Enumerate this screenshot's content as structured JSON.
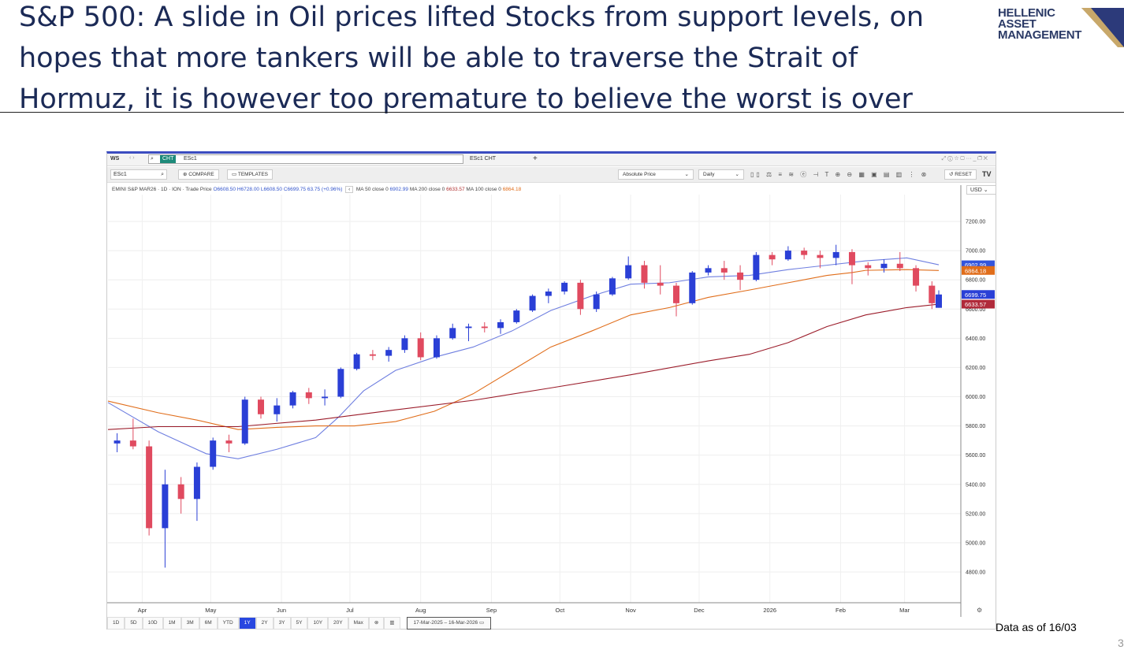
{
  "slide": {
    "title": "S&P 500: A slide in Oil prices lifted Stocks from support levels, on hopes that more tankers will be able to traverse the Strait of Hormuz, it is however too premature to believe the worst is over",
    "logo_text": "HELLENIC ASSET MANAGEMENT",
    "note": "Data as of 16/03",
    "page": "3"
  },
  "window": {
    "workspace": "WS",
    "cht_badge": "CHT",
    "search_value": "ESc1",
    "tab": "ESc1 CHT",
    "add_tab": "+",
    "ric": "ESc1",
    "compare": "COMPARE",
    "templates": "TEMPLATES",
    "price_mode": "Absolute Price",
    "interval": "Daily",
    "reset": "RESET",
    "currency": "USD",
    "accent": "#3b4cc0"
  },
  "legend": {
    "instrument": "EMINI S&P MAR26 · 1D · ION · Trade Price",
    "o": "O6608.50",
    "h": "H6728.00",
    "l": "L6608.50",
    "c": "C6699.75",
    "chg": "63.75 (+0.96%)",
    "ma50": "MA 50 close 0",
    "ma50_v": "6902.99",
    "ma200": "MA 200 close 0",
    "ma200_v": "6633.57",
    "ma100": "MA 100 close 0",
    "ma100_v": "6864.18"
  },
  "range_buttons": [
    "1D",
    "5D",
    "10D",
    "1M",
    "3M",
    "6M",
    "YTD",
    "1Y",
    "2Y",
    "3Y",
    "5Y",
    "10Y",
    "20Y",
    "Max"
  ],
  "range_active": "1Y",
  "date_range": "17-Mar-2025 – 16-Mar-2026",
  "chart_data": {
    "type": "candlestick",
    "ylim": [
      4700,
      7300
    ],
    "yticks": [
      4800,
      5000,
      5200,
      5400,
      5600,
      5800,
      6000,
      6200,
      6400,
      6600,
      6800,
      7000,
      7200
    ],
    "ytick_labels": [
      "4800.00",
      "5000.00",
      "5200.00",
      "5400.00",
      "5600.00",
      "5800.00",
      "6000.00",
      "6200.00",
      "6400.00",
      "6600.00",
      "6800.00",
      "7000.00",
      "7200.00"
    ],
    "xlim": [
      "2025-03-17",
      "2026-03-16"
    ],
    "xticks": [
      [
        "2025-04-01",
        "Apr"
      ],
      [
        "2025-05-01",
        "May"
      ],
      [
        "2025-06-01",
        "Jun"
      ],
      [
        "2025-07-01",
        "Jul"
      ],
      [
        "2025-08-01",
        "Aug"
      ],
      [
        "2025-09-01",
        "Sep"
      ],
      [
        "2025-10-01",
        "Oct"
      ],
      [
        "2025-11-01",
        "Nov"
      ],
      [
        "2025-12-01",
        "Dec"
      ],
      [
        "2026-01-01",
        "2026"
      ],
      [
        "2026-02-01",
        "Feb"
      ],
      [
        "2026-03-01",
        "Mar"
      ]
    ],
    "up_color": "#2a3fd6",
    "down_color": "#e04a5f",
    "grid": true,
    "candles": [
      [
        "2025-03-21",
        5680,
        5750,
        5620,
        5700
      ],
      [
        "2025-03-28",
        5700,
        5850,
        5640,
        5660
      ],
      [
        "2025-04-04",
        5660,
        5700,
        5050,
        5100
      ],
      [
        "2025-04-11",
        5100,
        5500,
        4830,
        5400
      ],
      [
        "2025-04-18",
        5400,
        5450,
        5200,
        5300
      ],
      [
        "2025-04-25",
        5300,
        5550,
        5150,
        5520
      ],
      [
        "2025-05-02",
        5520,
        5720,
        5500,
        5700
      ],
      [
        "2025-05-09",
        5700,
        5740,
        5620,
        5680
      ],
      [
        "2025-05-16",
        5680,
        6000,
        5670,
        5980
      ],
      [
        "2025-05-23",
        5980,
        6000,
        5850,
        5880
      ],
      [
        "2025-05-30",
        5880,
        5990,
        5830,
        5940
      ],
      [
        "2025-06-06",
        5940,
        6040,
        5920,
        6030
      ],
      [
        "2025-06-13",
        6030,
        6060,
        5950,
        5990
      ],
      [
        "2025-06-20",
        5990,
        6050,
        5940,
        6000
      ],
      [
        "2025-06-27",
        6000,
        6200,
        5990,
        6190
      ],
      [
        "2025-07-04",
        6190,
        6300,
        6180,
        6290
      ],
      [
        "2025-07-11",
        6290,
        6320,
        6250,
        6280
      ],
      [
        "2025-07-18",
        6280,
        6340,
        6240,
        6320
      ],
      [
        "2025-07-25",
        6320,
        6420,
        6300,
        6400
      ],
      [
        "2025-08-01",
        6400,
        6440,
        6250,
        6270
      ],
      [
        "2025-08-08",
        6270,
        6420,
        6260,
        6400
      ],
      [
        "2025-08-15",
        6400,
        6500,
        6390,
        6470
      ],
      [
        "2025-08-22",
        6470,
        6500,
        6380,
        6480
      ],
      [
        "2025-08-29",
        6480,
        6510,
        6440,
        6470
      ],
      [
        "2025-09-05",
        6470,
        6530,
        6430,
        6510
      ],
      [
        "2025-09-12",
        6510,
        6600,
        6500,
        6590
      ],
      [
        "2025-09-19",
        6590,
        6700,
        6580,
        6690
      ],
      [
        "2025-09-26",
        6690,
        6740,
        6640,
        6720
      ],
      [
        "2025-10-03",
        6720,
        6790,
        6700,
        6780
      ],
      [
        "2025-10-10",
        6780,
        6800,
        6560,
        6600
      ],
      [
        "2025-10-17",
        6600,
        6720,
        6580,
        6700
      ],
      [
        "2025-10-24",
        6700,
        6820,
        6690,
        6810
      ],
      [
        "2025-10-31",
        6810,
        6960,
        6800,
        6900
      ],
      [
        "2025-11-07",
        6900,
        6930,
        6740,
        6780
      ],
      [
        "2025-11-14",
        6780,
        6900,
        6700,
        6760
      ],
      [
        "2025-11-21",
        6760,
        6780,
        6550,
        6640
      ],
      [
        "2025-11-28",
        6640,
        6860,
        6630,
        6850
      ],
      [
        "2025-12-05",
        6850,
        6900,
        6830,
        6880
      ],
      [
        "2025-12-12",
        6880,
        6930,
        6800,
        6850
      ],
      [
        "2025-12-19",
        6850,
        6900,
        6730,
        6800
      ],
      [
        "2025-12-26",
        6800,
        6990,
        6790,
        6970
      ],
      [
        "2026-01-02",
        6970,
        6990,
        6900,
        6940
      ],
      [
        "2026-01-09",
        6940,
        7030,
        6930,
        7000
      ],
      [
        "2026-01-16",
        7000,
        7020,
        6940,
        6970
      ],
      [
        "2026-01-23",
        6970,
        7000,
        6880,
        6950
      ],
      [
        "2026-01-30",
        6950,
        7040,
        6900,
        6990
      ],
      [
        "2026-02-06",
        6990,
        7010,
        6770,
        6900
      ],
      [
        "2026-02-13",
        6900,
        6920,
        6830,
        6880
      ],
      [
        "2026-02-20",
        6880,
        6940,
        6850,
        6910
      ],
      [
        "2026-02-27",
        6910,
        6990,
        6860,
        6880
      ],
      [
        "2026-03-06",
        6880,
        6900,
        6720,
        6760
      ],
      [
        "2026-03-13",
        6760,
        6790,
        6600,
        6640
      ],
      [
        "2026-03-16",
        6608.5,
        6728,
        6608.5,
        6699.75
      ]
    ],
    "series": [
      {
        "name": "MA 50 close 0",
        "color": "#6f7fe0",
        "last": 6902.99,
        "points": [
          [
            "2025-03-17",
            5960
          ],
          [
            "2025-04-08",
            5760
          ],
          [
            "2025-04-29",
            5610
          ],
          [
            "2025-05-13",
            5575
          ],
          [
            "2025-05-30",
            5640
          ],
          [
            "2025-06-16",
            5720
          ],
          [
            "2025-06-26",
            5860
          ],
          [
            "2025-07-07",
            6040
          ],
          [
            "2025-07-21",
            6180
          ],
          [
            "2025-08-07",
            6270
          ],
          [
            "2025-08-24",
            6340
          ],
          [
            "2025-09-10",
            6450
          ],
          [
            "2025-09-27",
            6590
          ],
          [
            "2025-10-15",
            6690
          ],
          [
            "2025-11-01",
            6770
          ],
          [
            "2025-11-18",
            6780
          ],
          [
            "2025-12-05",
            6820
          ],
          [
            "2025-12-23",
            6830
          ],
          [
            "2026-01-09",
            6870
          ],
          [
            "2026-01-26",
            6900
          ],
          [
            "2026-02-12",
            6930
          ],
          [
            "2026-03-02",
            6950
          ],
          [
            "2026-03-16",
            6902.99
          ]
        ]
      },
      {
        "name": "MA 100 close 0",
        "color": "#e06d1a",
        "last": 6864.18,
        "points": [
          [
            "2025-03-17",
            5970
          ],
          [
            "2025-04-08",
            5890
          ],
          [
            "2025-04-25",
            5840
          ],
          [
            "2025-05-13",
            5775
          ],
          [
            "2025-05-30",
            5790
          ],
          [
            "2025-06-16",
            5800
          ],
          [
            "2025-07-03",
            5800
          ],
          [
            "2025-07-21",
            5830
          ],
          [
            "2025-08-07",
            5900
          ],
          [
            "2025-08-24",
            6020
          ],
          [
            "2025-09-10",
            6180
          ],
          [
            "2025-09-27",
            6340
          ],
          [
            "2025-10-15",
            6450
          ],
          [
            "2025-11-01",
            6560
          ],
          [
            "2025-11-18",
            6610
          ],
          [
            "2025-12-05",
            6680
          ],
          [
            "2025-12-23",
            6730
          ],
          [
            "2026-01-09",
            6780
          ],
          [
            "2026-01-26",
            6830
          ],
          [
            "2026-02-06",
            6850
          ],
          [
            "2026-02-12",
            6865
          ],
          [
            "2026-03-02",
            6870
          ],
          [
            "2026-03-16",
            6864.18
          ]
        ]
      },
      {
        "name": "MA 200 close 0",
        "color": "#9b1c2a",
        "last": 6633.57,
        "points": [
          [
            "2025-03-17",
            5775
          ],
          [
            "2025-04-08",
            5795
          ],
          [
            "2025-05-13",
            5795
          ],
          [
            "2025-06-16",
            5840
          ],
          [
            "2025-07-21",
            5910
          ],
          [
            "2025-08-24",
            5975
          ],
          [
            "2025-09-27",
            6060
          ],
          [
            "2025-11-01",
            6150
          ],
          [
            "2025-12-05",
            6245
          ],
          [
            "2025-12-23",
            6290
          ],
          [
            "2026-01-09",
            6370
          ],
          [
            "2026-01-26",
            6480
          ],
          [
            "2026-02-12",
            6560
          ],
          [
            "2026-03-02",
            6610
          ],
          [
            "2026-03-16",
            6633.57
          ]
        ]
      }
    ],
    "last_price": {
      "value": 6699.75,
      "color": "#2a3fd6"
    }
  }
}
